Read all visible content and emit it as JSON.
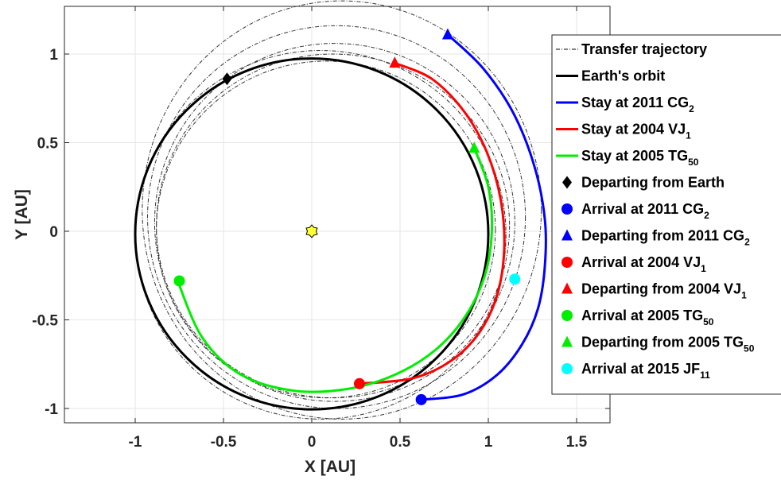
{
  "chart_data": {
    "type": "line",
    "xlabel": "X  [AU]",
    "ylabel": "Y  [AU]",
    "xlim": [
      -1.4,
      1.7
    ],
    "ylim": [
      -1.1,
      1.28
    ],
    "xticks": [
      -1,
      -0.5,
      0,
      0.5,
      1,
      1.5
    ],
    "xtick_labels": [
      "-1",
      "-0.5",
      "0",
      "0.5",
      "1",
      "1.5"
    ],
    "yticks": [
      -1,
      -0.5,
      0,
      0.5,
      1
    ],
    "ytick_labels": [
      "-1",
      "-0.5",
      "0",
      "0.5",
      "1"
    ],
    "grid": true,
    "legend_position": "right",
    "sun": {
      "x": 0,
      "y": 0
    },
    "earth_orbit": {
      "radius_x": 1.0,
      "radius_y": 0.99,
      "center_x": 0,
      "center_y": -0.015
    },
    "transfer_trajectories": [
      {
        "center_x": 0.17,
        "center_y": 0.12,
        "radius_x": 1.13,
        "radius_y": 1.18
      },
      {
        "center_x": 0.14,
        "center_y": 0.08,
        "radius_x": 1.07,
        "radius_y": 1.08
      },
      {
        "center_x": 0.13,
        "center_y": 0.05,
        "radius_x": 1.02,
        "radius_y": 1.01
      },
      {
        "center_x": 0.12,
        "center_y": 0.03,
        "radius_x": 1.0,
        "radius_y": 0.97
      },
      {
        "center_x": 0.08,
        "center_y": 0.01,
        "radius_x": 0.96,
        "radius_y": 0.95
      },
      {
        "center_x": 0.05,
        "center_y": -0.02,
        "radius_x": 1.05,
        "radius_y": 1.04
      }
    ],
    "series": [
      {
        "name": "Stay at 2011 CG",
        "sub": "2",
        "color": "#0000ff",
        "x": [
          0.77,
          0.97,
          1.14,
          1.26,
          1.32,
          1.32,
          1.28,
          1.19,
          1.05,
          0.86,
          0.63
        ],
        "y": [
          1.11,
          0.92,
          0.67,
          0.37,
          0.07,
          -0.2,
          -0.44,
          -0.64,
          -0.81,
          -0.92,
          -0.95
        ]
      },
      {
        "name": "Stay at 2004 VJ",
        "sub": "1",
        "color": "#ff0000",
        "x": [
          0.47,
          0.68,
          0.86,
          0.99,
          1.07,
          1.09,
          1.05,
          0.95,
          0.79,
          0.57,
          0.27
        ],
        "y": [
          0.95,
          0.86,
          0.68,
          0.45,
          0.18,
          -0.1,
          -0.36,
          -0.57,
          -0.73,
          -0.83,
          -0.86
        ]
      },
      {
        "name": "Stay at 2005 TG",
        "sub": "50",
        "color": "#00ee00",
        "x": [
          0.92,
          1.0,
          1.02,
          0.98,
          0.87,
          0.7,
          0.47,
          0.2,
          -0.1,
          -0.4,
          -0.62,
          -0.76
        ],
        "y": [
          0.47,
          0.25,
          0.0,
          -0.25,
          -0.48,
          -0.67,
          -0.81,
          -0.89,
          -0.9,
          -0.81,
          -0.6,
          -0.28
        ]
      }
    ],
    "markers": [
      {
        "name": "Departing from Earth",
        "shape": "diamond",
        "color": "#000000",
        "x": -0.48,
        "y": 0.86
      },
      {
        "name": "Arrival at 2011 CG",
        "sub": "2",
        "shape": "circle",
        "color": "#0000ff",
        "x": 0.62,
        "y": -0.95
      },
      {
        "name": "Departing from 2011 CG",
        "sub": "2",
        "shape": "triangle",
        "color": "#0000ff",
        "x": 0.77,
        "y": 1.11
      },
      {
        "name": "Arrival at 2004 VJ",
        "sub": "1",
        "shape": "circle",
        "color": "#ff0000",
        "x": 0.27,
        "y": -0.86
      },
      {
        "name": "Departing from 2004 VJ",
        "sub": "1",
        "shape": "triangle",
        "color": "#ff0000",
        "x": 0.47,
        "y": 0.95
      },
      {
        "name": "Arrival at 2005 TG",
        "sub": "50",
        "shape": "circle",
        "color": "#00ee00",
        "x": -0.75,
        "y": -0.28
      },
      {
        "name": "Departing from 2005 TG",
        "sub": "50",
        "shape": "triangle",
        "color": "#00ee00",
        "x": 0.92,
        "y": 0.47
      },
      {
        "name": "Arrival at 2015 JF",
        "sub": "11",
        "shape": "circle",
        "color": "#00ffff",
        "x": 1.15,
        "y": -0.27
      }
    ],
    "legend": [
      {
        "label": "Transfer trajectory",
        "sub": "",
        "kind": "dashdot",
        "color": "#000000"
      },
      {
        "label": "Earth's orbit",
        "sub": "",
        "kind": "line",
        "color": "#000000"
      },
      {
        "label": "Stay at 2011 CG",
        "sub": "2",
        "kind": "line",
        "color": "#0000ff"
      },
      {
        "label": "Stay at 2004 VJ",
        "sub": "1",
        "kind": "line",
        "color": "#ff0000"
      },
      {
        "label": "Stay at 2005 TG",
        "sub": "50",
        "kind": "line",
        "color": "#00ee00"
      },
      {
        "label": "Departing from Earth",
        "sub": "",
        "kind": "diamond",
        "color": "#000000"
      },
      {
        "label": "Arrival at 2011 CG",
        "sub": "2",
        "kind": "circle",
        "color": "#0000ff"
      },
      {
        "label": "Departing from 2011 CG",
        "sub": "2",
        "kind": "triangle",
        "color": "#0000ff"
      },
      {
        "label": "Arrival at 2004 VJ",
        "sub": "1",
        "kind": "circle",
        "color": "#ff0000"
      },
      {
        "label": "Departing from 2004 VJ",
        "sub": "1",
        "kind": "triangle",
        "color": "#ff0000"
      },
      {
        "label": "Arrival at 2005 TG",
        "sub": "50",
        "kind": "circle",
        "color": "#00ee00"
      },
      {
        "label": "Departing from 2005 TG",
        "sub": "50",
        "kind": "triangle",
        "color": "#00ee00"
      },
      {
        "label": "Arrival at 2015 JF",
        "sub": "11",
        "kind": "circle",
        "color": "#00ffff"
      }
    ]
  }
}
